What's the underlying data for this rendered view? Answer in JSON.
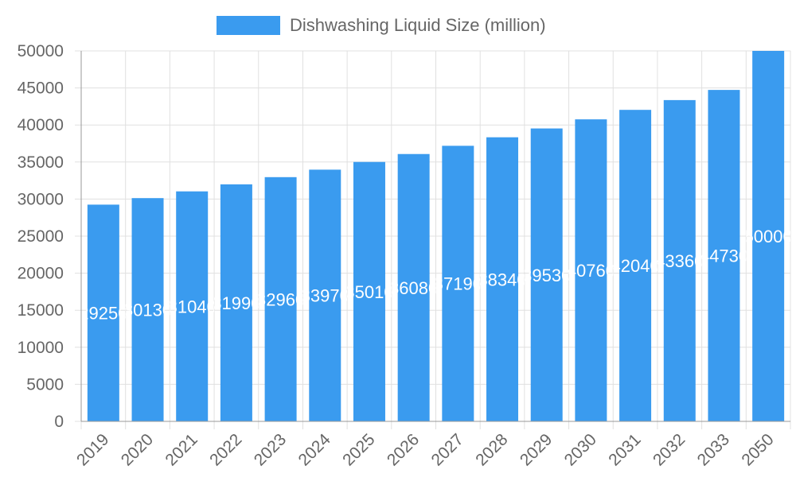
{
  "chart_data": {
    "type": "bar",
    "legend": {
      "label": "Dishwashing Liquid Size (million)",
      "placement": "top"
    },
    "categories": [
      "2019",
      "2020",
      "2021",
      "2022",
      "2023",
      "2024",
      "2025",
      "2026",
      "2027",
      "2028",
      "2029",
      "2030",
      "2031",
      "2032",
      "2033",
      "2050"
    ],
    "series": [
      {
        "name": "Dishwashing Liquid Size (million)",
        "values": [
          29250,
          30130,
          31040,
          31990,
          32960,
          33970,
          35010,
          36080,
          37190,
          38340,
          39530,
          40760,
          42040,
          43360,
          44730,
          50000
        ],
        "color": "#3a9bef"
      }
    ],
    "ylim": [
      0,
      50000
    ],
    "yticks": [
      0,
      5000,
      10000,
      15000,
      20000,
      25000,
      30000,
      35000,
      40000,
      45000,
      50000
    ],
    "grid": true,
    "data_labels": true
  }
}
